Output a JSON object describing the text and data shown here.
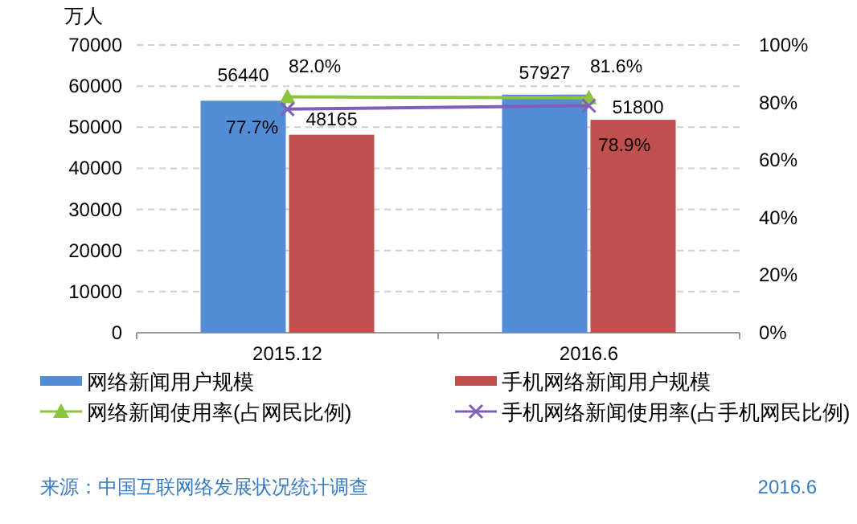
{
  "chart_data": {
    "type": "bar",
    "ylabel": "万人",
    "categories": [
      "2015.12",
      "2016.6"
    ],
    "series": [
      {
        "name": "网络新闻用户规模",
        "color": "#538dd5",
        "values": [
          56440,
          57927
        ]
      },
      {
        "name": "手机网络新闻用户规模",
        "color": "#c0504d",
        "values": [
          48165,
          51800
        ]
      },
      {
        "name": "网络新闻使用率(占网民比例)",
        "color": "#8cc43f",
        "type": "line",
        "axis": "y2",
        "marker": "triangle",
        "values": [
          82.0,
          81.6
        ],
        "value_labels": [
          "82.0%",
          "81.6%"
        ]
      },
      {
        "name": "手机网络新闻使用率(占手机网民比例)",
        "color": "#7f5fb8",
        "type": "line",
        "axis": "y2",
        "marker": "cross",
        "values": [
          77.7,
          78.9
        ],
        "value_labels": [
          "77.7%",
          "78.9%"
        ]
      }
    ],
    "data_labels": true,
    "ylim": [
      0,
      70000
    ],
    "yticks": [
      0,
      10000,
      20000,
      30000,
      40000,
      50000,
      60000,
      70000
    ],
    "y2lim": [
      0,
      100
    ],
    "y2ticks": [
      {
        "value": 0,
        "label": "0%"
      },
      {
        "value": 20,
        "label": "20%"
      },
      {
        "value": 40,
        "label": "40%"
      },
      {
        "value": 60,
        "label": "60%"
      },
      {
        "value": 80,
        "label": "80%"
      },
      {
        "value": 100,
        "label": "100%"
      }
    ],
    "grid": "y",
    "legend": "bottom",
    "annotations": [
      "来源：中国互联网络发展状况统计调查",
      "2016.6"
    ]
  }
}
